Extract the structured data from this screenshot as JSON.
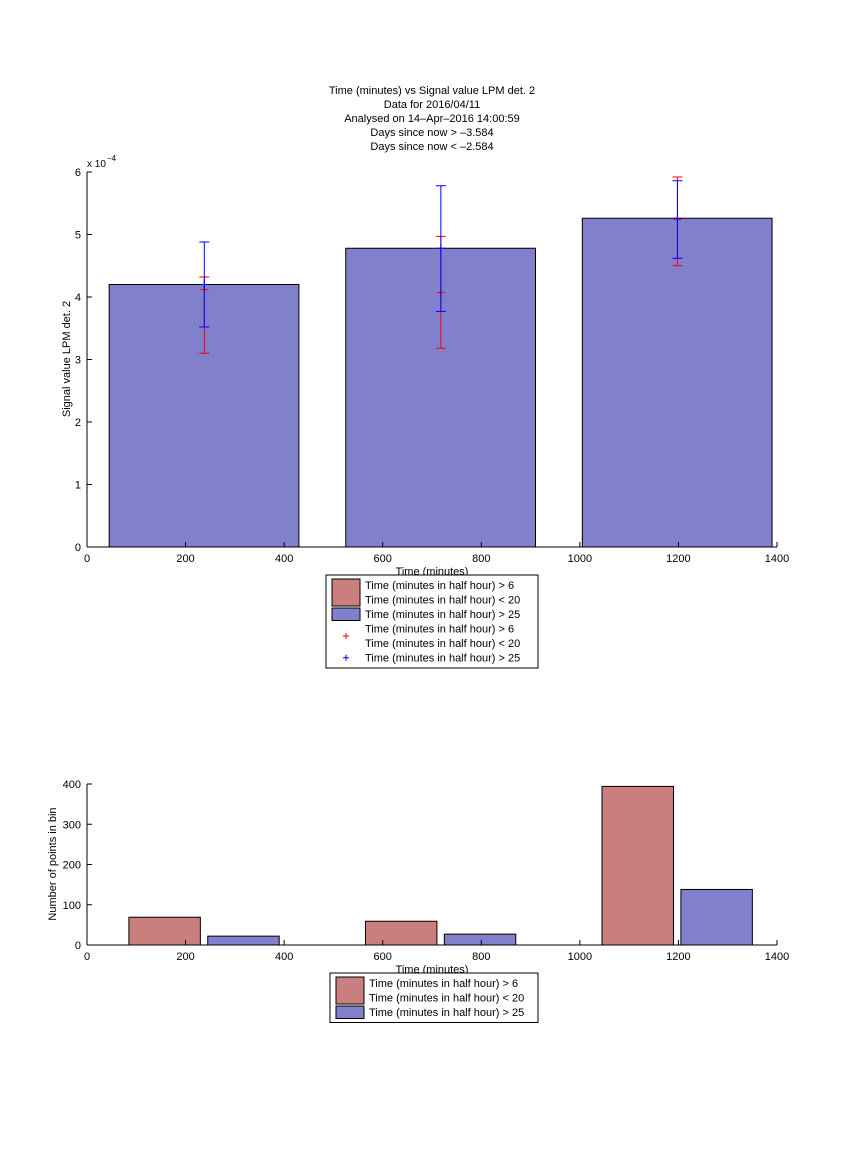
{
  "colors": {
    "red_bar": "#ca7f7f",
    "blue_bar": "#8080cd",
    "red_err": "#ff0000",
    "blue_err": "#0000ff",
    "axis": "#000000"
  },
  "chart_data": [
    {
      "type": "bar",
      "title_lines": [
        "Time (minutes) vs Signal value LPM det. 2",
        "Data for 2016/04/11",
        "Analysed on 14–Apr–2016 14:00:59",
        "Days since now > –3.584",
        "Days since now < –2.584"
      ],
      "xlabel": "Time (minutes)",
      "ylabel": "Signal value LPM det. 2",
      "y_exponent_label": "x 10",
      "y_exponent_power": "−4",
      "xlim": [
        0,
        1400
      ],
      "ylim": [
        0,
        6
      ],
      "y_scale_factor": 0.0001,
      "xticks": [
        0,
        200,
        400,
        600,
        800,
        1000,
        1200,
        1400
      ],
      "yticks": [
        0,
        1,
        2,
        3,
        4,
        5,
        6
      ],
      "bars": [
        {
          "series": "Time (minutes in half hour) > 25",
          "x_start": 45,
          "x_end": 430,
          "value": 4.2
        },
        {
          "series": "Time (minutes in half hour) > 25",
          "x_start": 525,
          "x_end": 910,
          "value": 4.78
        },
        {
          "series": "Time (minutes in half hour) > 25",
          "x_start": 1005,
          "x_end": 1390,
          "value": 5.26
        }
      ],
      "error_bars": [
        {
          "series": "Time (minutes in half hour) > 6 Time (minutes in half hour) < 20",
          "x": 238,
          "center": 4.12,
          "low": 3.1,
          "high": 4.32
        },
        {
          "series": "Time (minutes in half hour) > 25",
          "x": 238,
          "center": 4.2,
          "low": 3.52,
          "high": 4.88
        },
        {
          "series": "Time (minutes in half hour) > 6 Time (minutes in half hour) < 20",
          "x": 718,
          "center": 4.07,
          "low": 3.18,
          "high": 4.97
        },
        {
          "series": "Time (minutes in half hour) > 25",
          "x": 718,
          "center": 4.78,
          "low": 3.77,
          "high": 5.78
        },
        {
          "series": "Time (minutes in half hour) > 6 Time (minutes in half hour) < 20",
          "x": 1198,
          "center": 5.24,
          "low": 4.5,
          "high": 5.92
        },
        {
          "series": "Time (minutes in half hour) > 25",
          "x": 1198,
          "center": 5.26,
          "low": 4.62,
          "high": 5.86
        }
      ],
      "legend": [
        {
          "kind": "patch",
          "color": "red",
          "lines": [
            "Time (minutes in half hour) > 6",
            "Time (minutes in half hour) < 20"
          ]
        },
        {
          "kind": "patch",
          "color": "blue",
          "lines": [
            "Time (minutes in half hour) > 25"
          ]
        },
        {
          "kind": "marker",
          "color": "red",
          "lines": [
            "Time (minutes in half hour) > 6",
            "Time (minutes in half hour) < 20"
          ]
        },
        {
          "kind": "marker",
          "color": "blue",
          "lines": [
            "Time (minutes in half hour) > 25"
          ]
        }
      ],
      "legend_position": "below"
    },
    {
      "type": "bar",
      "xlabel": "Time (minutes)",
      "ylabel": "Number of points in bin",
      "xlim": [
        0,
        1400
      ],
      "ylim": [
        0,
        400
      ],
      "xticks": [
        0,
        200,
        400,
        600,
        800,
        1000,
        1200,
        1400
      ],
      "yticks": [
        0,
        100,
        200,
        300,
        400
      ],
      "series": [
        {
          "name": "Time (minutes in half hour) > 6 Time (minutes in half hour) < 20",
          "color": "red",
          "bars": [
            {
              "x_start": 85,
              "x_end": 230,
              "value": 69
            },
            {
              "x_start": 565,
              "x_end": 710,
              "value": 59
            },
            {
              "x_start": 1045,
              "x_end": 1190,
              "value": 394
            }
          ]
        },
        {
          "name": "Time (minutes in half hour) > 25",
          "color": "blue",
          "bars": [
            {
              "x_start": 245,
              "x_end": 390,
              "value": 22
            },
            {
              "x_start": 725,
              "x_end": 870,
              "value": 27
            },
            {
              "x_start": 1205,
              "x_end": 1350,
              "value": 138
            }
          ]
        }
      ],
      "legend": [
        {
          "kind": "patch",
          "color": "red",
          "lines": [
            "Time (minutes in half hour) > 6",
            "Time (minutes in half hour) < 20"
          ]
        },
        {
          "kind": "patch",
          "color": "blue",
          "lines": [
            "Time (minutes in half hour) > 25"
          ]
        }
      ],
      "legend_position": "below"
    }
  ]
}
